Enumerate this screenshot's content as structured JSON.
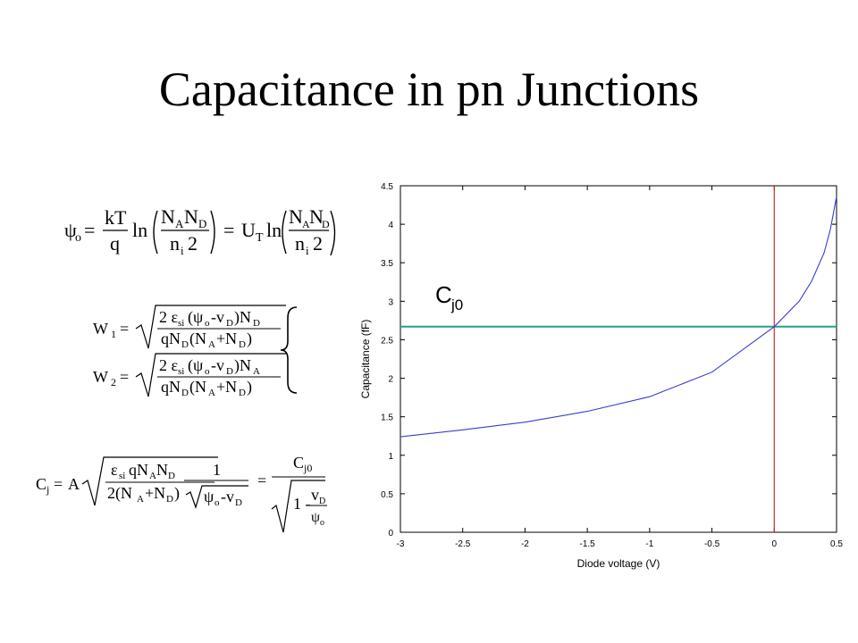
{
  "title": "Capacitance in pn Junctions",
  "equations": {
    "builtin_potential": "ψ0 = (kT/q) ln(NA ND / ni^2) = UT ln(NA ND / ni^2)",
    "depletion_widths": "W1 = sqrt(2 εsi (ψ0 - vD) ND / (q NA (NA + ND))); W2 = sqrt(2 εsi (ψ0 - vD) NA / (q ND (NA + ND)))",
    "junction_capacitance": "Cj = A sqrt(εsi q NA ND / (2 (NA + ND))) · 1/sqrt(ψ0 - vD) = Cj0 / sqrt(1 - vD/ψ0)"
  },
  "chart_data": {
    "type": "line",
    "xlabel": "Diode voltage (V)",
    "ylabel": "Capacitance (fF)",
    "xlim": [
      -3,
      0.5
    ],
    "ylim": [
      0,
      4.5
    ],
    "xticks": [
      "-3",
      "-2.5",
      "-2",
      "-1.5",
      "-1",
      "-0.5",
      "0",
      "0.5"
    ],
    "yticks": [
      "0",
      "0.5",
      "1",
      "1.5",
      "2",
      "2.5",
      "3",
      "3.5",
      "4",
      "4.5"
    ],
    "series": [
      {
        "color": "#3b3bd6",
        "x": [
          -3,
          -2.5,
          -2,
          -1.5,
          -1,
          -0.5,
          0,
          0.2,
          0.3,
          0.4,
          0.45,
          0.5
        ],
        "y": [
          1.24,
          1.33,
          1.43,
          1.57,
          1.76,
          2.08,
          2.67,
          3.0,
          3.26,
          3.63,
          3.93,
          4.36
        ]
      }
    ],
    "reference_lines": [
      {
        "orientation": "horizontal",
        "value": 2.67,
        "color": "#1aa58a"
      },
      {
        "orientation": "vertical",
        "value": 0,
        "color": "#d42a2a"
      }
    ],
    "annotation": {
      "main": "C",
      "sub": "j0",
      "x": -2.72,
      "y": 2.98
    }
  }
}
